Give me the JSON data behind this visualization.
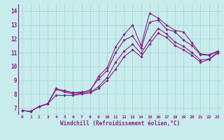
{
  "xlabel": "Windchill (Refroidissement éolien,°C)",
  "background_color": "#c8ecec",
  "grid_color": "#a8d8d8",
  "line_color": "#882288",
  "xlim": [
    -0.5,
    23.5
  ],
  "ylim": [
    6.5,
    14.5
  ],
  "xticks": [
    0,
    1,
    2,
    3,
    4,
    5,
    6,
    7,
    8,
    9,
    10,
    11,
    12,
    13,
    14,
    15,
    16,
    17,
    18,
    19,
    20,
    21,
    22,
    23
  ],
  "yticks": [
    7,
    8,
    9,
    10,
    11,
    12,
    13,
    14
  ],
  "series": [
    [
      6.8,
      6.75,
      7.1,
      7.3,
      8.4,
      8.2,
      8.1,
      8.15,
      8.2,
      9.3,
      9.9,
      11.4,
      12.3,
      13.0,
      11.5,
      13.85,
      13.5,
      13.0,
      12.6,
      12.5,
      11.7,
      10.9,
      10.85,
      11.1
    ],
    [
      6.8,
      6.75,
      7.1,
      7.3,
      8.35,
      8.25,
      8.1,
      8.1,
      8.3,
      9.1,
      9.7,
      11.0,
      11.9,
      12.2,
      11.3,
      13.2,
      13.35,
      12.7,
      12.5,
      11.9,
      11.5,
      10.85,
      10.8,
      11.05
    ],
    [
      6.8,
      6.75,
      7.1,
      7.3,
      8.35,
      8.15,
      8.0,
      8.05,
      8.1,
      8.55,
      9.2,
      10.3,
      11.1,
      11.6,
      10.95,
      11.9,
      12.75,
      12.35,
      11.75,
      11.45,
      11.0,
      10.45,
      10.55,
      11.0
    ],
    [
      6.8,
      6.75,
      7.1,
      7.3,
      7.9,
      7.9,
      7.9,
      8.0,
      8.1,
      8.4,
      9.0,
      9.8,
      10.7,
      11.2,
      10.7,
      11.6,
      12.4,
      12.1,
      11.5,
      11.2,
      10.8,
      10.3,
      10.5,
      10.95
    ]
  ]
}
